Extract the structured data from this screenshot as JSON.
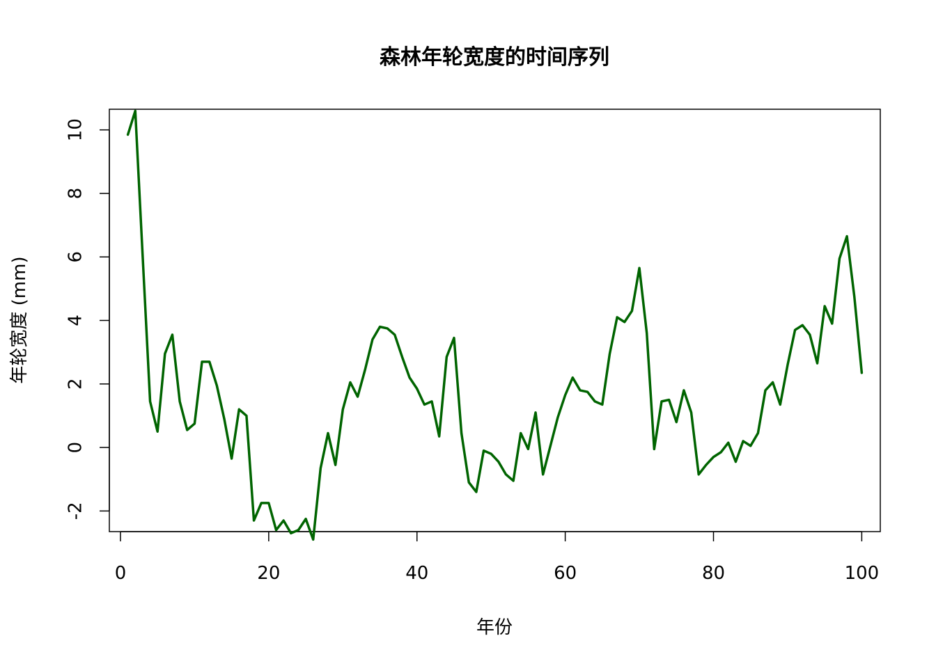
{
  "chart_data": {
    "type": "line",
    "title": "森林年轮宽度的时间序列",
    "xlabel": "年份",
    "ylabel": "年轮宽度 (mm)",
    "xlim": [
      0,
      100
    ],
    "ylim": [
      -3,
      11
    ],
    "x_ticks": [
      0,
      20,
      40,
      60,
      80,
      100
    ],
    "y_ticks": [
      -2,
      0,
      2,
      4,
      6,
      8,
      10
    ],
    "grid": false,
    "legend": "none",
    "series": [
      {
        "color": "#006400",
        "x": [
          1,
          2,
          3,
          4,
          5,
          6,
          7,
          8,
          9,
          10,
          11,
          12,
          13,
          14,
          15,
          16,
          17,
          18,
          19,
          20,
          21,
          22,
          23,
          24,
          25,
          26,
          27,
          28,
          29,
          30,
          31,
          32,
          33,
          34,
          35,
          36,
          37,
          38,
          39,
          40,
          41,
          42,
          43,
          44,
          45,
          46,
          47,
          48,
          49,
          50,
          51,
          52,
          53,
          54,
          55,
          56,
          57,
          58,
          59,
          60,
          61,
          62,
          63,
          64,
          65,
          66,
          67,
          68,
          69,
          70,
          71,
          72,
          73,
          74,
          75,
          76,
          77,
          78,
          79,
          80,
          81,
          82,
          83,
          84,
          85,
          86,
          87,
          88,
          89,
          90,
          91,
          92,
          93,
          94,
          95,
          96,
          97,
          98,
          99,
          100
        ],
        "values": [
          9.85,
          10.6,
          6.0,
          1.45,
          0.5,
          2.95,
          3.55,
          1.45,
          0.55,
          0.75,
          2.7,
          2.7,
          1.95,
          0.9,
          -0.35,
          1.2,
          1.0,
          -2.3,
          -1.75,
          -1.75,
          -2.6,
          -2.3,
          -2.7,
          -2.6,
          -2.25,
          -2.9,
          -0.65,
          0.45,
          -0.55,
          1.2,
          2.05,
          1.6,
          2.45,
          3.4,
          3.8,
          3.75,
          3.55,
          2.85,
          2.2,
          1.85,
          1.35,
          1.45,
          0.35,
          2.85,
          3.45,
          0.45,
          -1.1,
          -1.4,
          -0.1,
          -0.2,
          -0.45,
          -0.85,
          -1.05,
          0.45,
          -0.05,
          1.1,
          -0.85,
          0.05,
          0.95,
          1.65,
          2.2,
          1.8,
          1.75,
          1.45,
          1.35,
          2.95,
          4.1,
          3.95,
          4.3,
          5.65,
          3.6,
          -0.05,
          1.45,
          1.5,
          0.8,
          1.8,
          1.1,
          -0.85,
          -0.55,
          -0.3,
          -0.15,
          0.15,
          -0.45,
          0.2,
          0.05,
          0.45,
          1.8,
          2.05,
          1.35,
          2.6,
          3.7,
          3.85,
          3.55,
          2.65,
          4.45,
          3.9,
          5.95,
          6.65,
          4.75,
          2.35
        ]
      }
    ]
  }
}
